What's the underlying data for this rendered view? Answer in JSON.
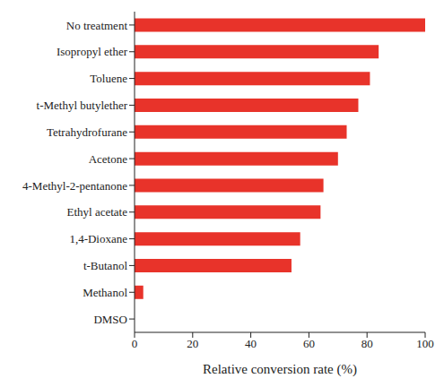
{
  "chart_data": {
    "type": "bar",
    "orientation": "horizontal",
    "categories": [
      "No treatment",
      "Isopropyl ether",
      "Toluene",
      "t-Methyl butylether",
      "Tetrahydrofurane",
      "Acetone",
      "4-Methyl-2-pentanone",
      "Ethyl acetate",
      "1,4-Dioxane",
      "t-Butanol",
      "Methanol",
      "DMSO"
    ],
    "values": [
      100,
      84,
      81,
      77,
      73,
      70,
      65,
      64,
      57,
      54,
      3,
      0
    ],
    "color": "#e8332a",
    "x_label": "Relative conversion rate (%)",
    "xlim": [
      0,
      100
    ],
    "xticks": [
      0,
      20,
      40,
      60,
      80,
      100
    ],
    "grid": false
  }
}
